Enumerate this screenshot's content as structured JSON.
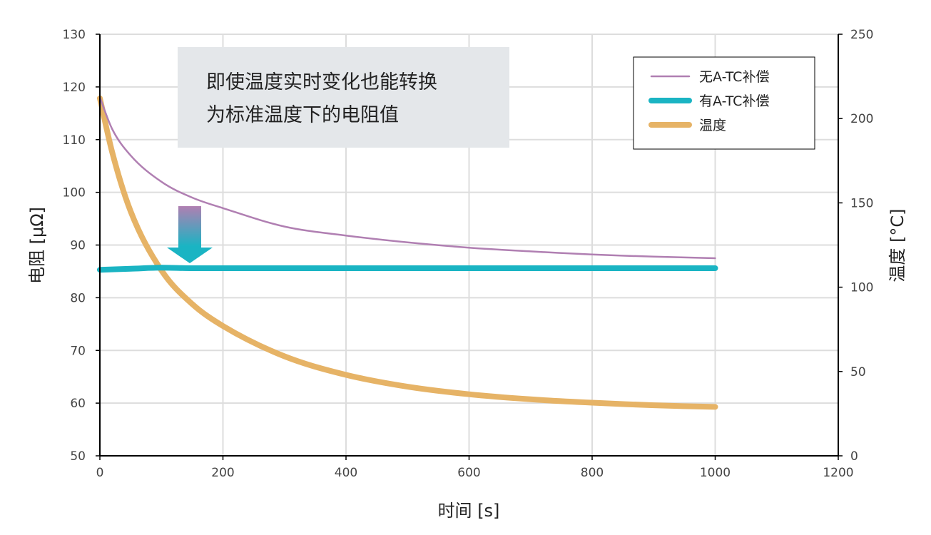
{
  "chart_data": {
    "type": "line",
    "title": "",
    "xlabel": "时间 [s]",
    "ylabel": "电阻 [μΩ]",
    "y2label": "温度 [°C]",
    "xlim": [
      0,
      1200
    ],
    "ylim": [
      50,
      130
    ],
    "y2lim": [
      0,
      250
    ],
    "x_ticks": [
      0,
      200,
      400,
      600,
      800,
      1000,
      1200
    ],
    "y_ticks": [
      50,
      60,
      70,
      80,
      90,
      100,
      110,
      120,
      130
    ],
    "y2_ticks": [
      0,
      50,
      100,
      150,
      200,
      250
    ],
    "grid": true,
    "legend_position": "top-right",
    "annotation": [
      "即使温度实时变化也能转换",
      "为标准温度下的电阻值"
    ],
    "series": [
      {
        "name": "无A-TC补偿",
        "axis": "left",
        "color": "#b07fb2",
        "x": [
          0,
          20,
          50,
          100,
          150,
          200,
          300,
          400,
          500,
          600,
          700,
          800,
          900,
          1000
        ],
        "values": [
          118,
          112,
          107,
          102,
          99,
          97,
          93.5,
          91.8,
          90.5,
          89.5,
          88.8,
          88.2,
          87.8,
          87.5
        ]
      },
      {
        "name": "有A-TC补偿",
        "axis": "left",
        "color": "#1ab4c3",
        "x": [
          0,
          50,
          100,
          150,
          200,
          400,
          600,
          800,
          1000
        ],
        "values": [
          85.3,
          85.5,
          85.7,
          85.6,
          85.6,
          85.6,
          85.6,
          85.6,
          85.6
        ]
      },
      {
        "name": "温度",
        "axis": "right",
        "color": "#e6b366",
        "x": [
          0,
          20,
          50,
          100,
          150,
          200,
          300,
          400,
          500,
          600,
          700,
          800,
          900,
          1000
        ],
        "values": [
          212,
          180,
          145,
          110,
          90,
          77,
          59,
          48,
          41,
          36.5,
          33.5,
          31.5,
          30,
          29
        ]
      }
    ]
  }
}
